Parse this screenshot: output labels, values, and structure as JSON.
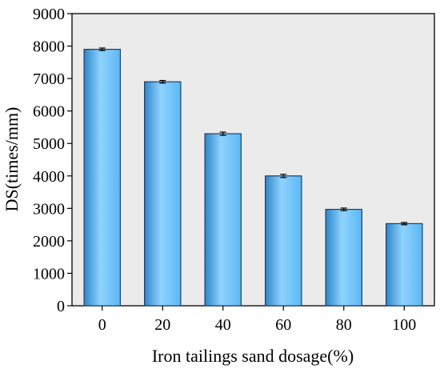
{
  "chart_data": {
    "type": "bar",
    "categories": [
      "0",
      "20",
      "40",
      "60",
      "80",
      "100"
    ],
    "values": [
      7900,
      6900,
      5300,
      4000,
      2970,
      2530
    ],
    "error": [
      40,
      40,
      50,
      50,
      40,
      35
    ],
    "xlabel": "Iron tailings sand dosage(%)",
    "ylabel": "DS(times/mm)",
    "ylim": [
      0,
      9000
    ],
    "yticks": [
      0,
      1000,
      2000,
      3000,
      4000,
      5000,
      6000,
      7000,
      8000,
      9000
    ],
    "grid": false,
    "colors": {
      "plot_background": "#ebebeb",
      "bar_edge": "#1f3f66",
      "bar_light": "#8fd3ff",
      "bar_mid": "#5bb8f2",
      "bar_dark": "#2e86c9"
    }
  }
}
